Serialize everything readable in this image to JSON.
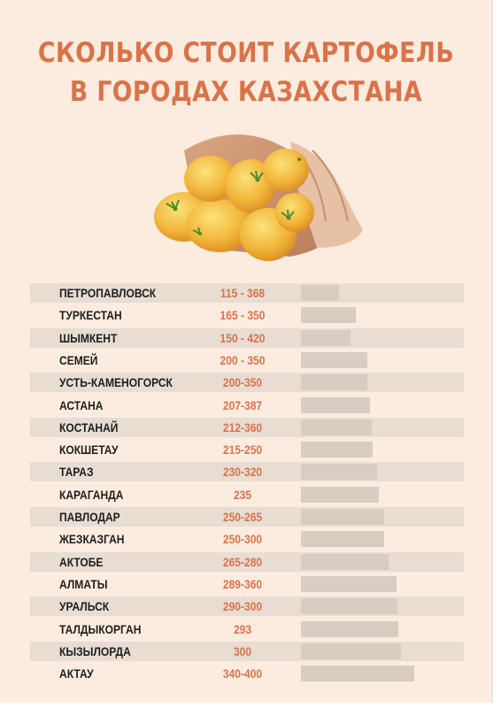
{
  "title": {
    "line1": "СКОЛЬКО СТОИТ КАРТОФЕЛЬ",
    "line2": "В ГОРОДАХ КАЗАХСТАНА"
  },
  "colors": {
    "background": "#fcece0",
    "accent": "#d9734a",
    "bar": "#d8cdc3",
    "band": "#e8ddd3"
  },
  "illustration": {
    "icon": "potato-sack-icon"
  },
  "chart_data": {
    "type": "bar",
    "title": "СКОЛЬКО СТОИТ КАРТОФЕЛЬ В ГОРОДАХ КАЗАХСТАНА",
    "categories": [
      "ПЕТРОПАВЛОВСК",
      "ТУРКЕСТАН",
      "ШЫМКЕНТ",
      "СЕМЕЙ",
      "УСТЬ-КАМЕНОГОРСК",
      "АСТАНА",
      "КОСТАНАЙ",
      "КОКШЕТАУ",
      "ТАРАЗ",
      "КАРАГАНДА",
      "ПАВЛОДАР",
      "ЖЕЗКАЗГАН",
      "АКТОБЕ",
      "АЛМАТЫ",
      "УРАЛЬСК",
      "ТАЛДЫКОРГАН",
      "КЫЗЫЛОРДА",
      "АКТАУ"
    ],
    "price_labels": [
      "115 - 368",
      "165 - 350",
      "150 - 420",
      "200 - 350",
      "200-350",
      "207-387",
      "212-360",
      "215-250",
      "230-320",
      "235",
      "250-265",
      "250-300",
      "265-280",
      "289-360",
      "290-300",
      "293",
      "300",
      "340-400"
    ],
    "values": [
      115,
      165,
      150,
      200,
      200,
      207,
      212,
      215,
      230,
      235,
      250,
      250,
      265,
      289,
      290,
      293,
      300,
      340
    ],
    "xlim": [
      0,
      400
    ],
    "orientation": "horizontal",
    "grid": false,
    "legend": "none"
  }
}
